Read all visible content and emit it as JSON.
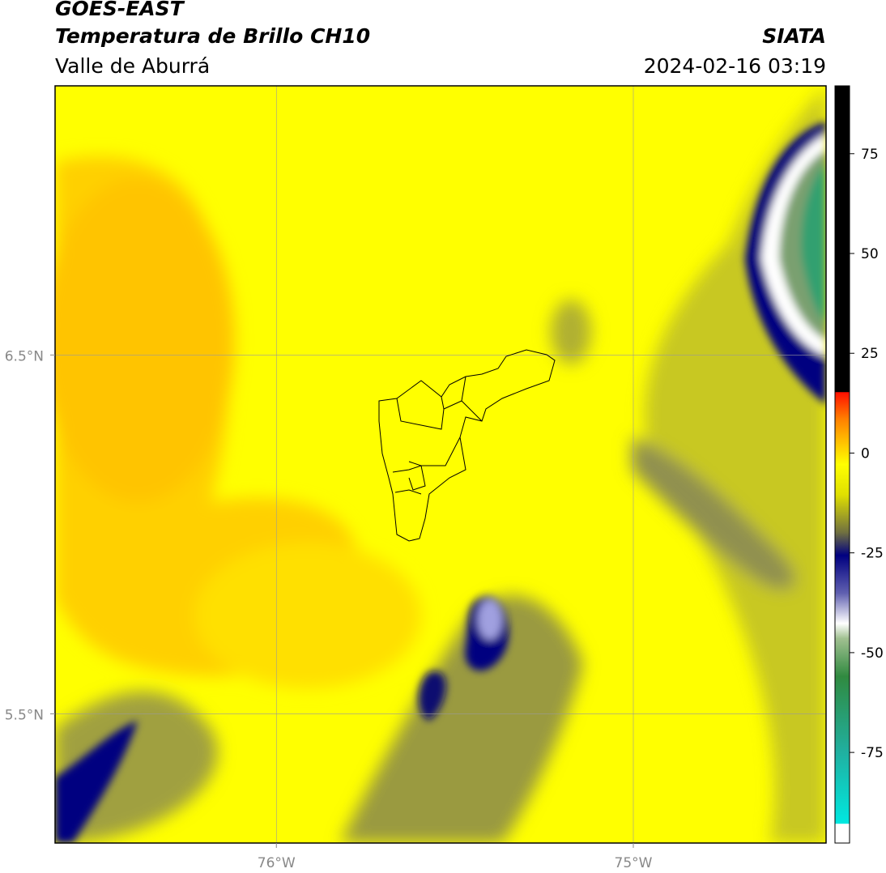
{
  "header": {
    "title": "GOES-EAST",
    "subtitle": "Temperatura de Brillo CH10",
    "region": "Valle de Aburrá",
    "source": "SIATA",
    "timestamp": "2024-02-16 03:19"
  },
  "map": {
    "xlim": [
      -76.62,
      -74.46
    ],
    "ylim": [
      5.14,
      7.25
    ],
    "xticks": [
      {
        "value": -76,
        "label": "76°W"
      },
      {
        "value": -75,
        "label": "75°W"
      }
    ],
    "yticks": [
      {
        "value": 6.5,
        "label": "6.5°N"
      },
      {
        "value": 5.5,
        "label": "5.5°N"
      }
    ]
  },
  "colorbar": {
    "lim": [
      -97.7,
      92
    ],
    "ticks": [
      75,
      50,
      25,
      0,
      -25,
      -50,
      -75
    ]
  }
}
